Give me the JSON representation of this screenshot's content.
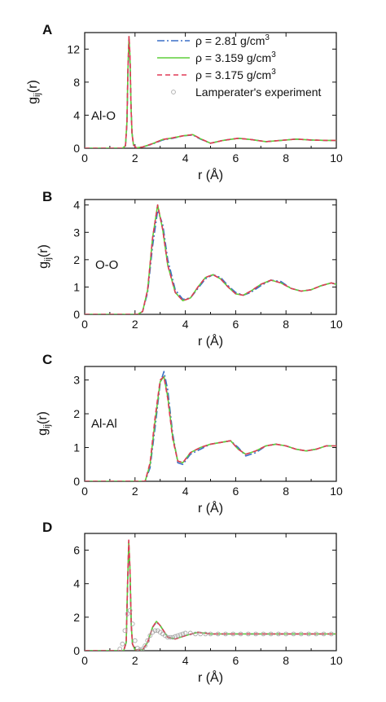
{
  "figure": {
    "legend": [
      {
        "label": "ρ = 2.81 g/cm",
        "sup": "3",
        "style": "dashdot",
        "color": "#3a6fc7"
      },
      {
        "label": "ρ = 3.159 g/cm",
        "sup": "3",
        "style": "solid",
        "color": "#5fcf3a"
      },
      {
        "label": "ρ = 3.175 g/cm",
        "sup": "3",
        "style": "dash",
        "color": "#e03a57"
      },
      {
        "label": "Lamperater's experiment",
        "sup": "",
        "style": "circle",
        "color": "#a8a8a8"
      }
    ]
  },
  "chart_data": [
    {
      "type": "line",
      "panel_letter": "A",
      "inner_label": "Al-O",
      "xlabel": "r (Å)",
      "ylabel": {
        "base": "g",
        "sub": "ij",
        "tail": "(r)"
      },
      "xlim": [
        0,
        10
      ],
      "ylim": [
        0,
        14
      ],
      "xticks": [
        0,
        2,
        4,
        6,
        8,
        10
      ],
      "yticks": [
        0,
        4,
        8,
        12
      ],
      "series": [
        {
          "name": "ρ = 2.81 g/cm3",
          "x": [
            0,
            1.5,
            1.62,
            1.68,
            1.72,
            1.76,
            1.8,
            1.84,
            1.88,
            1.94,
            2.05,
            2.3,
            2.7,
            3.1,
            3.5,
            3.9,
            4.3,
            4.6,
            5.0,
            5.5,
            6.1,
            6.6,
            7.2,
            7.8,
            8.4,
            9.0,
            9.6,
            10.0
          ],
          "y": [
            0,
            0,
            0.3,
            3.0,
            9.0,
            13.0,
            11.0,
            5.2,
            1.9,
            0.4,
            0.05,
            0.15,
            0.5,
            1.0,
            1.2,
            1.5,
            1.6,
            1.1,
            0.6,
            0.95,
            1.2,
            1.05,
            0.8,
            0.95,
            1.1,
            1.0,
            0.95,
            0.95
          ]
        },
        {
          "name": "ρ = 3.159 g/cm3",
          "x": [
            0,
            1.5,
            1.62,
            1.68,
            1.72,
            1.76,
            1.8,
            1.84,
            1.88,
            1.94,
            2.05,
            2.3,
            2.7,
            3.1,
            3.5,
            3.9,
            4.3,
            4.6,
            5.0,
            5.5,
            6.1,
            6.6,
            7.2,
            7.8,
            8.4,
            9.0,
            9.6,
            10.0
          ],
          "y": [
            0,
            0,
            0.3,
            3.2,
            9.5,
            13.5,
            11.2,
            5.0,
            1.8,
            0.4,
            0.05,
            0.15,
            0.55,
            1.05,
            1.25,
            1.5,
            1.65,
            1.15,
            0.6,
            0.95,
            1.2,
            1.05,
            0.8,
            0.95,
            1.1,
            1.0,
            0.95,
            0.95
          ]
        },
        {
          "name": "ρ = 3.175 g/cm3",
          "x": [
            0,
            1.5,
            1.62,
            1.68,
            1.72,
            1.76,
            1.8,
            1.84,
            1.88,
            1.94,
            2.05,
            2.3,
            2.7,
            3.1,
            3.5,
            3.9,
            4.3,
            4.6,
            5.0,
            5.5,
            6.1,
            6.6,
            7.2,
            7.8,
            8.4,
            9.0,
            9.6,
            10.0
          ],
          "y": [
            0,
            0,
            0.3,
            3.2,
            9.6,
            13.6,
            11.3,
            5.0,
            1.8,
            0.4,
            0.05,
            0.15,
            0.55,
            1.05,
            1.25,
            1.5,
            1.65,
            1.15,
            0.6,
            0.95,
            1.2,
            1.05,
            0.8,
            0.95,
            1.1,
            1.0,
            0.95,
            0.95
          ]
        }
      ]
    },
    {
      "type": "line",
      "panel_letter": "B",
      "inner_label": "O-O",
      "xlabel": "r (Å)",
      "ylabel": {
        "base": "g",
        "sub": "ij",
        "tail": "(r)"
      },
      "xlim": [
        0,
        10
      ],
      "ylim": [
        0,
        4.2
      ],
      "xticks": [
        0,
        2,
        4,
        6,
        8,
        10
      ],
      "yticks": [
        0,
        1,
        2,
        3,
        4
      ],
      "series": [
        {
          "name": "ρ = 2.81 g/cm3",
          "x": [
            0,
            2.1,
            2.3,
            2.5,
            2.7,
            2.9,
            3.1,
            3.3,
            3.6,
            3.9,
            4.2,
            4.5,
            4.8,
            5.1,
            5.4,
            5.7,
            6.0,
            6.3,
            6.6,
            7.0,
            7.4,
            7.8,
            8.2,
            8.6,
            9.0,
            9.4,
            9.8,
            10.0
          ],
          "y": [
            0,
            0,
            0.1,
            0.8,
            2.5,
            3.8,
            3.3,
            2.0,
            0.9,
            0.55,
            0.6,
            0.95,
            1.3,
            1.45,
            1.35,
            1.05,
            0.8,
            0.7,
            0.8,
            1.05,
            1.25,
            1.2,
            0.95,
            0.85,
            0.9,
            1.05,
            1.15,
            1.1
          ]
        },
        {
          "name": "ρ = 3.159 g/cm3",
          "x": [
            0,
            2.1,
            2.3,
            2.5,
            2.7,
            2.9,
            3.1,
            3.3,
            3.6,
            3.9,
            4.2,
            4.5,
            4.8,
            5.1,
            5.4,
            5.7,
            6.0,
            6.3,
            6.6,
            7.0,
            7.4,
            7.8,
            8.2,
            8.6,
            9.0,
            9.4,
            9.8,
            10.0
          ],
          "y": [
            0,
            0,
            0.1,
            0.9,
            2.8,
            4.0,
            3.1,
            1.8,
            0.8,
            0.5,
            0.6,
            1.0,
            1.35,
            1.45,
            1.3,
            1.0,
            0.75,
            0.7,
            0.85,
            1.1,
            1.25,
            1.15,
            0.95,
            0.85,
            0.9,
            1.05,
            1.15,
            1.1
          ]
        },
        {
          "name": "ρ = 3.175 g/cm3",
          "x": [
            0,
            2.1,
            2.3,
            2.5,
            2.7,
            2.9,
            3.1,
            3.3,
            3.6,
            3.9,
            4.2,
            4.5,
            4.8,
            5.1,
            5.4,
            5.7,
            6.0,
            6.3,
            6.6,
            7.0,
            7.4,
            7.8,
            8.2,
            8.6,
            9.0,
            9.4,
            9.8,
            10.0
          ],
          "y": [
            0,
            0,
            0.1,
            0.9,
            2.8,
            4.0,
            3.1,
            1.8,
            0.8,
            0.5,
            0.6,
            1.0,
            1.35,
            1.45,
            1.3,
            1.0,
            0.75,
            0.7,
            0.85,
            1.1,
            1.25,
            1.15,
            0.95,
            0.85,
            0.9,
            1.05,
            1.15,
            1.1
          ]
        }
      ]
    },
    {
      "type": "line",
      "panel_letter": "C",
      "inner_label": "Al-Al",
      "xlabel": "r (Å)",
      "ylabel": {
        "base": "g",
        "sub": "ij",
        "tail": "(r)"
      },
      "xlim": [
        0,
        10
      ],
      "ylim": [
        0,
        3.4
      ],
      "xticks": [
        0,
        2,
        4,
        6,
        8,
        10
      ],
      "yticks": [
        0,
        1,
        2,
        3
      ],
      "series": [
        {
          "name": "ρ = 2.81 g/cm3",
          "x": [
            0,
            2.4,
            2.6,
            2.8,
            3.0,
            3.15,
            3.3,
            3.5,
            3.7,
            3.9,
            4.2,
            4.6,
            5.0,
            5.4,
            5.8,
            6.1,
            6.4,
            6.8,
            7.2,
            7.6,
            8.0,
            8.4,
            8.8,
            9.2,
            9.6,
            10.0
          ],
          "y": [
            0,
            0,
            0.4,
            1.6,
            2.9,
            3.25,
            2.7,
            1.4,
            0.55,
            0.5,
            0.8,
            0.95,
            1.1,
            1.15,
            1.2,
            1.0,
            0.75,
            0.85,
            1.05,
            1.1,
            1.05,
            0.95,
            0.9,
            0.95,
            1.05,
            1.05
          ]
        },
        {
          "name": "ρ = 3.159 g/cm3",
          "x": [
            0,
            2.4,
            2.6,
            2.8,
            3.0,
            3.15,
            3.3,
            3.5,
            3.7,
            3.9,
            4.2,
            4.6,
            5.0,
            5.4,
            5.8,
            6.1,
            6.4,
            6.8,
            7.2,
            7.6,
            8.0,
            8.4,
            8.8,
            9.2,
            9.6,
            10.0
          ],
          "y": [
            0,
            0,
            0.5,
            1.8,
            2.95,
            3.1,
            2.5,
            1.3,
            0.6,
            0.55,
            0.85,
            1.0,
            1.1,
            1.15,
            1.2,
            0.95,
            0.8,
            0.9,
            1.05,
            1.1,
            1.05,
            0.95,
            0.9,
            0.95,
            1.05,
            1.05
          ]
        },
        {
          "name": "ρ = 3.175 g/cm3",
          "x": [
            0,
            2.4,
            2.6,
            2.8,
            3.0,
            3.15,
            3.3,
            3.5,
            3.7,
            3.9,
            4.2,
            4.6,
            5.0,
            5.4,
            5.8,
            6.1,
            6.4,
            6.8,
            7.2,
            7.6,
            8.0,
            8.4,
            8.8,
            9.2,
            9.6,
            10.0
          ],
          "y": [
            0,
            0,
            0.55,
            1.9,
            3.0,
            3.1,
            2.45,
            1.25,
            0.6,
            0.55,
            0.85,
            1.0,
            1.1,
            1.15,
            1.2,
            0.95,
            0.8,
            0.9,
            1.05,
            1.1,
            1.05,
            0.95,
            0.9,
            0.95,
            1.05,
            1.05
          ]
        }
      ]
    },
    {
      "type": "line",
      "panel_letter": "D",
      "inner_label": "",
      "xlabel": "r (Å)",
      "ylabel": null,
      "xlim": [
        0,
        10
      ],
      "ylim": [
        0,
        7
      ],
      "xticks": [
        0,
        2,
        4,
        6,
        8,
        10
      ],
      "yticks": [
        0,
        2,
        4,
        6
      ],
      "series": [
        {
          "name": "ρ = 2.81 g/cm3",
          "x": [
            0,
            1.55,
            1.65,
            1.7,
            1.75,
            1.8,
            1.85,
            1.9,
            2.0,
            2.3,
            2.5,
            2.7,
            2.85,
            3.0,
            3.3,
            3.6,
            4.0,
            4.5,
            5.0,
            6.0,
            7.0,
            8.0,
            9.0,
            10.0
          ],
          "y": [
            0,
            0,
            0.5,
            3.5,
            6.2,
            4.8,
            1.5,
            0.4,
            0.05,
            0.05,
            0.5,
            1.4,
            1.7,
            1.5,
            0.8,
            0.7,
            0.9,
            1.1,
            1.0,
            1.0,
            1.0,
            1.0,
            1.0,
            1.0
          ]
        },
        {
          "name": "ρ = 3.159 g/cm3",
          "x": [
            0,
            1.55,
            1.65,
            1.7,
            1.75,
            1.8,
            1.85,
            1.9,
            2.0,
            2.3,
            2.5,
            2.7,
            2.85,
            3.0,
            3.3,
            3.6,
            4.0,
            4.5,
            5.0,
            6.0,
            7.0,
            8.0,
            9.0,
            10.0
          ],
          "y": [
            0,
            0,
            0.5,
            3.7,
            6.5,
            4.9,
            1.5,
            0.4,
            0.05,
            0.05,
            0.5,
            1.4,
            1.75,
            1.5,
            0.8,
            0.7,
            0.9,
            1.1,
            1.0,
            1.0,
            1.0,
            1.0,
            1.0,
            1.0
          ]
        },
        {
          "name": "ρ = 3.175 g/cm3",
          "x": [
            0,
            1.55,
            1.65,
            1.7,
            1.75,
            1.8,
            1.85,
            1.9,
            2.0,
            2.3,
            2.5,
            2.7,
            2.85,
            3.0,
            3.3,
            3.6,
            4.0,
            4.5,
            5.0,
            6.0,
            7.0,
            8.0,
            9.0,
            10.0
          ],
          "y": [
            0,
            0,
            0.5,
            3.7,
            6.6,
            4.9,
            1.5,
            0.4,
            0.05,
            0.05,
            0.5,
            1.4,
            1.75,
            1.5,
            0.8,
            0.7,
            0.9,
            1.1,
            1.0,
            1.0,
            1.0,
            1.0,
            1.0,
            1.0
          ]
        },
        {
          "name": "Lamperater's experiment",
          "marker": "circle",
          "x": [
            1.4,
            1.5,
            1.6,
            1.7,
            1.8,
            1.9,
            2.0,
            2.1,
            2.2,
            2.3,
            2.4,
            2.5,
            2.6,
            2.7,
            2.8,
            2.9,
            3.0,
            3.1,
            3.2,
            3.3,
            3.4,
            3.5,
            3.6,
            3.7,
            3.8,
            3.9,
            4.0,
            4.2,
            4.4,
            4.6,
            4.8,
            5.0,
            5.3,
            5.6,
            5.9,
            6.2,
            6.5,
            6.8,
            7.1,
            7.4,
            7.7,
            8.0,
            8.3,
            8.6,
            8.9,
            9.2,
            9.5,
            9.8
          ],
          "y": [
            0.1,
            0.4,
            1.2,
            2.2,
            2.4,
            1.6,
            0.6,
            0.15,
            0.05,
            0.1,
            0.3,
            0.6,
            0.9,
            1.1,
            1.2,
            1.2,
            1.1,
            1.0,
            0.9,
            0.8,
            0.8,
            0.8,
            0.85,
            0.9,
            0.95,
            1.0,
            1.05,
            1.05,
            1.0,
            1.0,
            1.0,
            1.0,
            1.0,
            1.0,
            1.0,
            1.0,
            1.0,
            1.0,
            1.0,
            1.0,
            1.0,
            1.0,
            1.0,
            1.0,
            1.0,
            1.0,
            1.0,
            1.0
          ]
        }
      ]
    }
  ]
}
